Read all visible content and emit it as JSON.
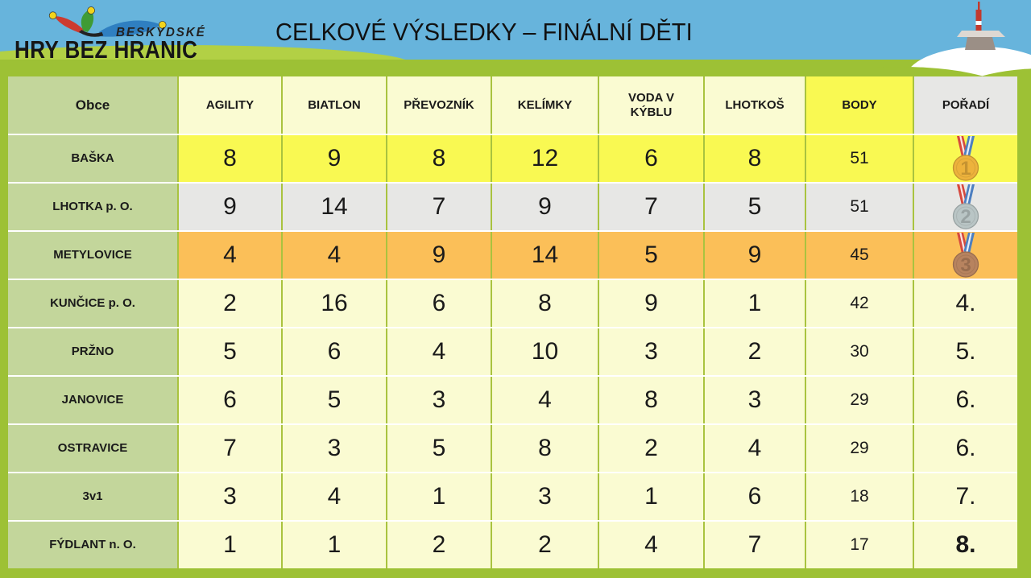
{
  "logo": {
    "region_label": "BESKYDSKÉ",
    "name_label": "HRY BEZ HRANIC",
    "icon": "jester-hat-icon"
  },
  "title": "CELKOVÉ VÝSLEDKY – FINÁLNÍ DĚTI",
  "scene_icon": "mountain-transmitter-tower-icon",
  "table": {
    "columns": [
      "Obce",
      "AGILITY",
      "BIATLON",
      "PŘEVOZNÍK",
      "KELÍMKY",
      "VODA V KÝBLU",
      "LHOTKOŠ",
      "BODY",
      "POŘADÍ"
    ],
    "rows": [
      {
        "name": "BAŠKA",
        "scores": [
          8,
          9,
          8,
          12,
          6,
          8
        ],
        "body": 51,
        "rank": "1",
        "medal": "gold",
        "rank_bold": false,
        "highlight": "yellow"
      },
      {
        "name": "LHOTKA p. O.",
        "scores": [
          9,
          14,
          7,
          9,
          7,
          5
        ],
        "body": 51,
        "rank": "2",
        "medal": "silver",
        "rank_bold": false,
        "highlight": "gray"
      },
      {
        "name": "METYLOVICE",
        "scores": [
          4,
          4,
          9,
          14,
          5,
          9
        ],
        "body": 45,
        "rank": "3",
        "medal": "bronze",
        "rank_bold": false,
        "highlight": "orange"
      },
      {
        "name": "KUNČICE p. O.",
        "scores": [
          2,
          16,
          6,
          8,
          9,
          1
        ],
        "body": 42,
        "rank": "4.",
        "medal": null,
        "rank_bold": false,
        "highlight": "cream"
      },
      {
        "name": "PRŽNO",
        "scores": [
          5,
          6,
          4,
          10,
          3,
          2
        ],
        "body": 30,
        "rank": "5.",
        "medal": null,
        "rank_bold": false,
        "highlight": "cream"
      },
      {
        "name": "JANOVICE",
        "scores": [
          6,
          5,
          3,
          4,
          8,
          3
        ],
        "body": 29,
        "rank": "6.",
        "medal": null,
        "rank_bold": false,
        "highlight": "cream"
      },
      {
        "name": "OSTRAVICE",
        "scores": [
          7,
          3,
          5,
          8,
          2,
          4
        ],
        "body": 29,
        "rank": "6.",
        "medal": null,
        "rank_bold": false,
        "highlight": "cream"
      },
      {
        "name": "3v1",
        "scores": [
          3,
          4,
          1,
          3,
          1,
          6
        ],
        "body": 18,
        "rank": "7.",
        "medal": null,
        "rank_bold": false,
        "highlight": "cream"
      },
      {
        "name": "FÝDLANT n. O.",
        "scores": [
          1,
          1,
          2,
          2,
          4,
          7
        ],
        "body": 17,
        "rank": "8.",
        "medal": null,
        "rank_bold": true,
        "highlight": "cream"
      }
    ]
  },
  "colors": {
    "sky": "#67b4dc",
    "grass": "#9dc135",
    "grass_light": "#b2d045",
    "grid_line": "#a9c33f",
    "row_separator": "#ffffff",
    "name_cell": "#c3d69b",
    "cream": "#fafbd2",
    "yellow": "#f9f952",
    "gray": "#e7e7e5",
    "orange": "#fbbf58",
    "medal_gold": "#edb23c",
    "medal_silver": "#b9c5c5",
    "medal_bronze": "#b7835f",
    "ribbon_red": "#d6493e",
    "ribbon_blue": "#4d7fc0"
  }
}
